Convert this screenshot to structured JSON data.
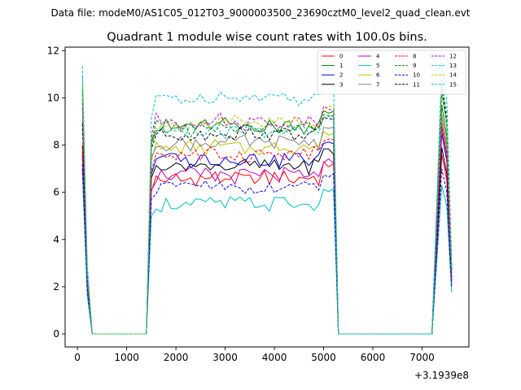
{
  "figure": {
    "suptitle": "Data file: modeM0/AS1C05_012T03_9000003500_23690cztM0_level2_quad_clean.evt"
  },
  "chart_data": {
    "type": "line",
    "title": "Quadrant 1 module wise count rates with 100.0s bins.",
    "xlabel": "",
    "ylabel": "",
    "x_offset_label": "+3.1939e8",
    "xlim": [
      -250,
      7950
    ],
    "ylim": [
      -0.55,
      12.15
    ],
    "x_ticks": [
      0,
      1000,
      2000,
      3000,
      4000,
      5000,
      6000,
      7000
    ],
    "x_tick_labels": [
      "0",
      "1000",
      "2000",
      "3000",
      "4000",
      "5000",
      "6000",
      "7000"
    ],
    "y_ticks": [
      0,
      2,
      4,
      6,
      8,
      10,
      12
    ],
    "y_tick_labels": [
      "0",
      "2",
      "4",
      "6",
      "8",
      "10",
      "12"
    ],
    "legend_position": "top-right",
    "profile": {
      "x": [
        100,
        200,
        300,
        400,
        1300,
        1400,
        1500,
        5200,
        5300,
        5400,
        7200,
        7300,
        7400,
        7500,
        7600
      ],
      "shape": [
        1.12,
        0.3,
        0,
        0,
        0,
        0,
        1.0,
        1.0,
        0,
        0,
        0,
        0.52,
        1.08,
        0.92,
        0.3
      ]
    },
    "plateau": {
      "x_start": 1500,
      "x_end": 5200,
      "step": 100
    },
    "series": [
      {
        "name": "0",
        "color": "#ff0000",
        "dash": "solid",
        "level": 6.6,
        "spike": 7.5,
        "late": 7.6
      },
      {
        "name": "1",
        "color": "#008000",
        "dash": "solid",
        "level": 8.8,
        "spike": 10.4,
        "late": 9.7
      },
      {
        "name": "2",
        "color": "#0000ff",
        "dash": "solid",
        "level": 7.4,
        "spike": 7.0,
        "late": 8.5
      },
      {
        "name": "3",
        "color": "#000000",
        "dash": "solid",
        "level": 7.1,
        "spike": 8.0,
        "late": 7.9
      },
      {
        "name": "4",
        "color": "#bf00bf",
        "dash": "solid",
        "level": 6.7,
        "spike": 7.6,
        "late": 8.8
      },
      {
        "name": "5",
        "color": "#00bfbf",
        "dash": "solid",
        "level": 5.5,
        "spike": 6.8,
        "late": 6.3
      },
      {
        "name": "6",
        "color": "#bfbf00",
        "dash": "solid",
        "level": 7.9,
        "spike": 9.0,
        "late": 9.1
      },
      {
        "name": "7",
        "color": "#808080",
        "dash": "solid",
        "level": 8.1,
        "spike": 9.6,
        "late": 9.3
      },
      {
        "name": "8",
        "color": "#ff0000",
        "dash": "dashed",
        "level": 7.6,
        "spike": 8.0,
        "late": 8.7
      },
      {
        "name": "9",
        "color": "#008000",
        "dash": "dashed",
        "level": 8.7,
        "spike": 10.2,
        "late": 10.3
      },
      {
        "name": "10",
        "color": "#0000ff",
        "dash": "dashed",
        "level": 6.2,
        "spike": 7.2,
        "late": 7.0
      },
      {
        "name": "11",
        "color": "#000000",
        "dash": "dashed",
        "level": 8.5,
        "spike": 8.9,
        "late": 10.5
      },
      {
        "name": "12",
        "color": "#bf00bf",
        "dash": "dashed",
        "level": 9.0,
        "spike": 9.8,
        "late": 8.9
      },
      {
        "name": "13",
        "color": "#00bfbf",
        "dash": "dashed",
        "level": 10.0,
        "spike": 11.35,
        "late": 11.5
      },
      {
        "name": "14",
        "color": "#bfbf00",
        "dash": "dashed",
        "level": 8.9,
        "spike": 10.6,
        "late": 10.2
      },
      {
        "name": "15",
        "color": "#00bfbf",
        "dash": "dashed",
        "level": 8.6,
        "spike": 10.9,
        "late": 10.8
      }
    ]
  }
}
